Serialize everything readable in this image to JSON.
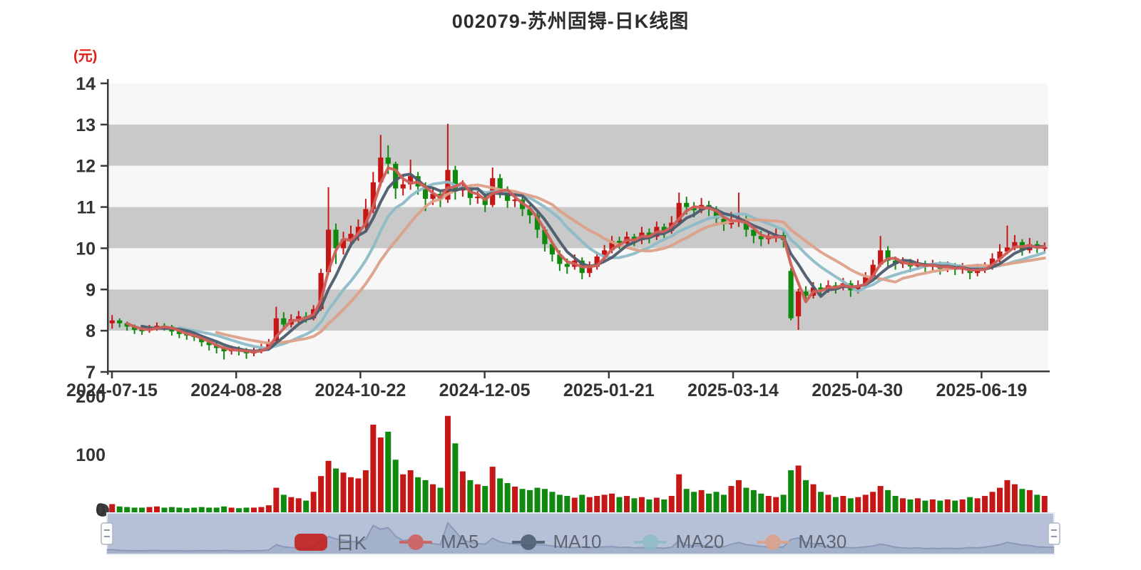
{
  "title": "002079-苏州固锝-日K线图",
  "y_axis": {
    "unit": "(元)",
    "ticks": [
      "14",
      "13",
      "12",
      "11",
      "10",
      "9",
      "8",
      "7"
    ]
  },
  "x_axis": {
    "ticks": [
      "2024-07-15",
      "2024-08-28",
      "2024-10-22",
      "2024-12-05",
      "2025-01-21",
      "2025-03-14",
      "2025-04-30",
      "2025-06-19"
    ]
  },
  "volume_axis": {
    "ticks": [
      "200",
      "100",
      "0"
    ]
  },
  "legend": [
    {
      "label": "日K",
      "color": "#c51715",
      "type": "rect"
    },
    {
      "label": "MA5",
      "color": "#d05f5a",
      "type": "line"
    },
    {
      "label": "MA10",
      "color": "#4c5b6e",
      "type": "line"
    },
    {
      "label": "MA20",
      "color": "#8cbcc6",
      "type": "line"
    },
    {
      "label": "MA30",
      "color": "#dda189",
      "type": "line"
    }
  ],
  "colors": {
    "up": "#c51715",
    "down": "#0f8a0f",
    "ma5": "#d05f5a",
    "ma10": "#4c5b6e",
    "ma20": "#8cbcc6",
    "ma30": "#dda189",
    "stripe_gray": "#c9c9c9",
    "stripe_light": "#f7f7f7",
    "axis": "#3a3a3a",
    "label": "#333333",
    "title": "#2d2d2d",
    "unit": "#e51a12",
    "slider_bg": "#b6c1d8",
    "slider_area": "#a3b1cb",
    "slider_line": "#8a99b8",
    "slider_border": "#e6e9f1",
    "handle_fill": "#fdfdfe",
    "handle_border": "#adb4c2"
  },
  "chart_data": {
    "type": "candlestick",
    "title": "002079-苏州固锝-日K线图",
    "xlabel": "",
    "ylabel": "(元)",
    "ylim": [
      7,
      14
    ],
    "y_ticks": [
      14,
      13,
      12,
      11,
      10,
      9,
      8,
      7
    ],
    "x_tick_labels": [
      "2024-07-15",
      "2024-08-28",
      "2024-10-22",
      "2024-12-05",
      "2025-01-21",
      "2025-03-14",
      "2025-04-30",
      "2025-06-19"
    ],
    "volume_ylim": [
      0,
      200
    ],
    "volume_ticks": [
      200,
      100,
      0
    ],
    "legend_entries": [
      "日K",
      "MA5",
      "MA10",
      "MA20",
      "MA30"
    ],
    "grid": "horizontal stripe bands",
    "legend_position": "bottom-center",
    "series": [
      {
        "name": "日K",
        "encoding": "[open, close, low, high, volume]",
        "values": [
          [
            8.18,
            8.25,
            8.05,
            8.38,
            14
          ],
          [
            8.25,
            8.18,
            8.08,
            8.3,
            10
          ],
          [
            8.18,
            8.1,
            8.0,
            8.22,
            9
          ],
          [
            8.1,
            8.02,
            7.92,
            8.15,
            8
          ],
          [
            8.02,
            8.0,
            7.9,
            8.1,
            8
          ],
          [
            8.0,
            8.06,
            7.95,
            8.14,
            9
          ],
          [
            8.06,
            8.12,
            8.0,
            8.2,
            10
          ],
          [
            8.12,
            8.1,
            8.0,
            8.18,
            8
          ],
          [
            8.1,
            7.98,
            7.88,
            8.14,
            9
          ],
          [
            7.98,
            7.92,
            7.82,
            8.02,
            8
          ],
          [
            7.92,
            7.88,
            7.78,
            7.98,
            7
          ],
          [
            7.88,
            7.85,
            7.75,
            7.95,
            8
          ],
          [
            7.85,
            7.72,
            7.62,
            7.9,
            9
          ],
          [
            7.72,
            7.65,
            7.52,
            7.78,
            8
          ],
          [
            7.65,
            7.58,
            7.45,
            7.72,
            8
          ],
          [
            7.58,
            7.5,
            7.3,
            7.62,
            10
          ],
          [
            7.5,
            7.55,
            7.42,
            7.64,
            8
          ],
          [
            7.55,
            7.52,
            7.4,
            7.62,
            7
          ],
          [
            7.52,
            7.45,
            7.32,
            7.58,
            8
          ],
          [
            7.45,
            7.5,
            7.38,
            7.6,
            8
          ],
          [
            7.5,
            7.58,
            7.45,
            7.68,
            9
          ],
          [
            7.58,
            7.7,
            7.52,
            7.8,
            12
          ],
          [
            7.7,
            8.3,
            7.65,
            8.58,
            42
          ],
          [
            8.3,
            8.15,
            8.02,
            8.45,
            30
          ],
          [
            8.15,
            8.28,
            8.08,
            8.4,
            26
          ],
          [
            8.28,
            8.35,
            8.18,
            8.48,
            24
          ],
          [
            8.35,
            8.3,
            8.2,
            8.45,
            20
          ],
          [
            8.3,
            8.52,
            8.25,
            8.62,
            35
          ],
          [
            8.52,
            9.4,
            8.48,
            9.5,
            62
          ],
          [
            9.42,
            10.45,
            9.35,
            11.48,
            88
          ],
          [
            10.45,
            10.0,
            9.62,
            10.6,
            75
          ],
          [
            10.0,
            10.22,
            9.85,
            10.4,
            68
          ],
          [
            10.22,
            10.35,
            10.02,
            10.55,
            60
          ],
          [
            10.35,
            10.52,
            10.18,
            10.7,
            58
          ],
          [
            10.52,
            10.95,
            10.4,
            11.2,
            72
          ],
          [
            10.95,
            11.6,
            10.85,
            11.85,
            150
          ],
          [
            11.6,
            12.2,
            11.5,
            12.75,
            128
          ],
          [
            12.2,
            12.05,
            11.8,
            12.5,
            138
          ],
          [
            12.05,
            11.45,
            11.2,
            12.1,
            90
          ],
          [
            11.45,
            11.55,
            11.28,
            11.75,
            65
          ],
          [
            11.55,
            11.75,
            11.42,
            12.15,
            72
          ],
          [
            11.75,
            11.5,
            11.3,
            11.85,
            60
          ],
          [
            11.5,
            11.2,
            10.9,
            11.6,
            55
          ],
          [
            11.2,
            11.32,
            11.05,
            11.48,
            48
          ],
          [
            11.32,
            11.18,
            11.0,
            11.42,
            42
          ],
          [
            11.18,
            11.9,
            11.1,
            13.02,
            165
          ],
          [
            11.9,
            11.4,
            11.18,
            12.0,
            118
          ],
          [
            11.4,
            11.48,
            11.25,
            11.65,
            70
          ],
          [
            11.48,
            11.22,
            11.05,
            11.55,
            55
          ],
          [
            11.22,
            11.25,
            11.08,
            11.42,
            48
          ],
          [
            11.25,
            11.05,
            10.88,
            11.35,
            45
          ],
          [
            11.05,
            11.7,
            11.0,
            11.96,
            78
          ],
          [
            11.7,
            11.4,
            11.22,
            11.8,
            58
          ],
          [
            11.4,
            11.15,
            10.98,
            11.5,
            50
          ],
          [
            11.15,
            11.18,
            11.0,
            11.35,
            44
          ],
          [
            11.18,
            10.95,
            10.78,
            11.25,
            40
          ],
          [
            10.95,
            10.8,
            10.6,
            11.05,
            38
          ],
          [
            10.8,
            10.45,
            10.25,
            10.88,
            42
          ],
          [
            10.45,
            10.1,
            9.92,
            10.52,
            40
          ],
          [
            10.1,
            9.85,
            9.68,
            10.18,
            35
          ],
          [
            9.85,
            9.62,
            9.45,
            9.95,
            30
          ],
          [
            9.62,
            9.55,
            9.38,
            9.75,
            28
          ],
          [
            9.55,
            9.7,
            9.48,
            9.85,
            25
          ],
          [
            9.7,
            9.4,
            9.25,
            9.78,
            30
          ],
          [
            9.4,
            9.55,
            9.3,
            9.68,
            26
          ],
          [
            9.55,
            9.8,
            9.48,
            9.92,
            28
          ],
          [
            9.8,
            9.95,
            9.7,
            10.08,
            30
          ],
          [
            9.95,
            10.18,
            9.88,
            10.3,
            32
          ],
          [
            10.18,
            10.12,
            9.98,
            10.28,
            26
          ],
          [
            10.12,
            10.28,
            10.02,
            10.4,
            28
          ],
          [
            10.28,
            10.2,
            10.05,
            10.35,
            24
          ],
          [
            10.2,
            10.38,
            10.1,
            10.52,
            26
          ],
          [
            10.38,
            10.28,
            10.12,
            10.48,
            22
          ],
          [
            10.28,
            10.52,
            10.2,
            10.65,
            25
          ],
          [
            10.52,
            10.42,
            10.25,
            10.6,
            22
          ],
          [
            10.42,
            10.62,
            10.35,
            10.78,
            28
          ],
          [
            10.62,
            11.1,
            10.55,
            11.35,
            65
          ],
          [
            11.1,
            11.0,
            10.82,
            11.25,
            40
          ],
          [
            11.0,
            10.92,
            10.75,
            11.12,
            35
          ],
          [
            10.92,
            11.05,
            10.85,
            11.22,
            38
          ],
          [
            11.05,
            10.95,
            10.78,
            11.15,
            32
          ],
          [
            10.95,
            10.72,
            10.55,
            11.02,
            35
          ],
          [
            10.72,
            10.58,
            10.42,
            10.85,
            30
          ],
          [
            10.58,
            10.7,
            10.48,
            10.88,
            45
          ],
          [
            10.7,
            10.72,
            10.52,
            11.35,
            55
          ],
          [
            10.72,
            10.45,
            10.28,
            10.8,
            42
          ],
          [
            10.45,
            10.3,
            10.12,
            10.55,
            38
          ],
          [
            10.3,
            10.22,
            10.05,
            10.42,
            32
          ],
          [
            10.22,
            10.28,
            10.1,
            10.42,
            28
          ],
          [
            10.28,
            10.32,
            10.15,
            10.48,
            26
          ],
          [
            10.32,
            10.2,
            10.02,
            10.42,
            30
          ],
          [
            9.45,
            8.3,
            8.25,
            9.52,
            72
          ],
          [
            8.35,
            8.95,
            8.02,
            9.02,
            80
          ],
          [
            8.95,
            8.85,
            8.68,
            9.08,
            55
          ],
          [
            8.85,
            9.05,
            8.78,
            9.18,
            48
          ],
          [
            9.05,
            9.0,
            8.85,
            9.15,
            35
          ],
          [
            9.0,
            9.1,
            8.92,
            9.22,
            30
          ],
          [
            9.1,
            9.05,
            8.9,
            9.18,
            26
          ],
          [
            9.05,
            9.15,
            8.98,
            9.28,
            28
          ],
          [
            9.15,
            8.98,
            8.82,
            9.22,
            24
          ],
          [
            8.98,
            9.1,
            8.9,
            9.22,
            26
          ],
          [
            9.1,
            9.3,
            9.02,
            9.42,
            30
          ],
          [
            9.3,
            9.6,
            9.25,
            9.72,
            35
          ],
          [
            9.6,
            9.95,
            9.55,
            10.3,
            45
          ],
          [
            9.95,
            9.7,
            9.55,
            10.05,
            38
          ],
          [
            9.7,
            9.62,
            9.48,
            9.8,
            28
          ],
          [
            9.62,
            9.66,
            9.52,
            9.78,
            24
          ],
          [
            9.66,
            9.56,
            9.42,
            9.74,
            22
          ],
          [
            9.56,
            9.62,
            9.48,
            9.74,
            24
          ],
          [
            9.62,
            9.55,
            9.42,
            9.7,
            20
          ],
          [
            9.55,
            9.6,
            9.46,
            9.72,
            22
          ],
          [
            9.6,
            9.5,
            9.36,
            9.68,
            20
          ],
          [
            9.5,
            9.56,
            9.42,
            9.68,
            22
          ],
          [
            9.56,
            9.48,
            9.35,
            9.64,
            20
          ],
          [
            9.48,
            9.52,
            9.38,
            9.64,
            22
          ],
          [
            9.52,
            9.4,
            9.25,
            9.58,
            26
          ],
          [
            9.4,
            9.5,
            9.32,
            9.62,
            24
          ],
          [
            9.5,
            9.55,
            9.4,
            9.66,
            28
          ],
          [
            9.55,
            9.75,
            9.48,
            9.88,
            35
          ],
          [
            9.75,
            9.92,
            9.66,
            10.1,
            42
          ],
          [
            9.92,
            10.02,
            9.85,
            10.55,
            55
          ],
          [
            10.02,
            10.15,
            9.95,
            10.32,
            48
          ],
          [
            10.15,
            9.95,
            9.82,
            10.22,
            40
          ],
          [
            9.95,
            10.1,
            9.88,
            10.25,
            38
          ],
          [
            10.1,
            10.0,
            9.88,
            10.18,
            30
          ],
          [
            10.0,
            10.02,
            9.9,
            10.14,
            28
          ]
        ]
      },
      {
        "name": "MA5",
        "derived": "moving average of close"
      },
      {
        "name": "MA10",
        "derived": "moving average of close"
      },
      {
        "name": "MA20",
        "derived": "moving average of close"
      },
      {
        "name": "MA30",
        "derived": "moving average of close"
      }
    ]
  }
}
